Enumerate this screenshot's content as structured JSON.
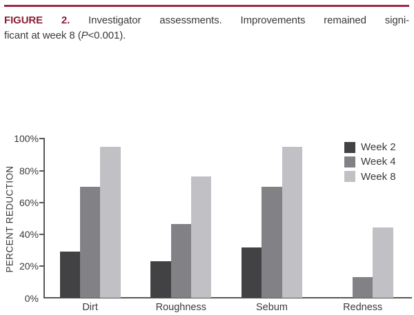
{
  "figure": {
    "label": "FIGURE 2.",
    "caption_line1": "Investigator assessments. Improvements remained signi-",
    "caption_line2_pre": "ficant at week 8 (",
    "caption_line2_italic": "P",
    "caption_line2_post": "<0.001)."
  },
  "colors": {
    "top_rule": "#9b2846",
    "figure_label": "#8b1e35",
    "body_text": "#3a3a3c",
    "axis": "#565659"
  },
  "chart_data": {
    "type": "bar",
    "title": "",
    "xlabel": "",
    "ylabel": "PERCENT REDUCTION",
    "ylim": [
      0,
      100
    ],
    "grid": false,
    "legend_position": "top-right",
    "categories": [
      "Dirt",
      "Roughness",
      "Sebum",
      "Redness"
    ],
    "series": [
      {
        "name": "Week 2",
        "color": "#424245",
        "values": [
          29,
          23,
          32,
          0
        ]
      },
      {
        "name": "Week 4",
        "color": "#828286",
        "values": [
          70,
          46.5,
          70,
          13
        ]
      },
      {
        "name": "Week 8",
        "color": "#c1c1c5",
        "values": [
          95,
          76.5,
          95,
          44.5
        ]
      }
    ],
    "yticks": [
      {
        "label": "0%",
        "value": 0
      },
      {
        "label": "20%",
        "value": 20
      },
      {
        "label": "40%",
        "value": 40
      },
      {
        "label": "60%",
        "value": 60
      },
      {
        "label": "80%",
        "value": 80
      },
      {
        "label": "100%",
        "value": 100
      }
    ]
  }
}
